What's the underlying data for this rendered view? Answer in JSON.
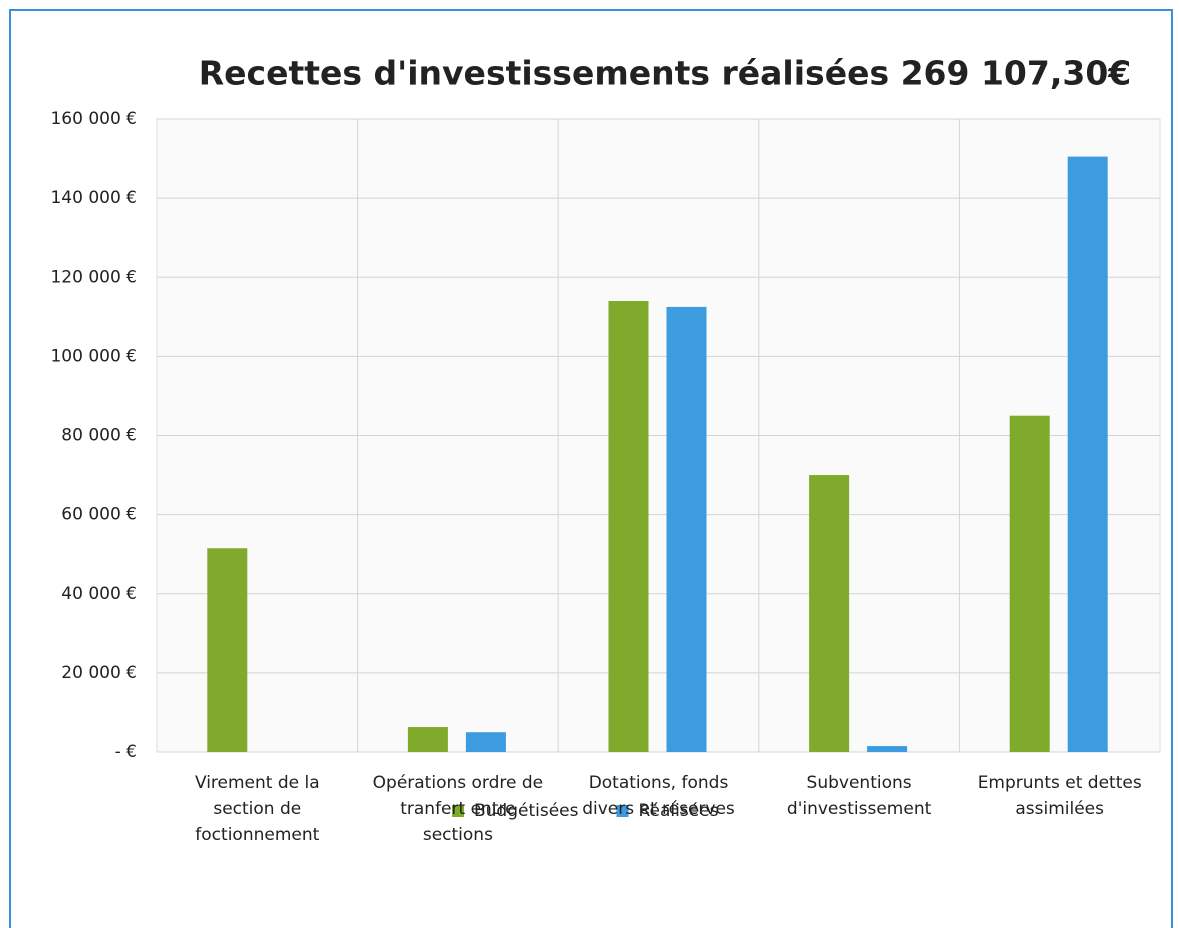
{
  "chart_data": {
    "type": "bar",
    "title": "Recettes d'investissements réalisées 269 107,30€",
    "categories": [
      "Virement de la section de foctionnement",
      "Opérations ordre de tranfert entre sections",
      "Dotations, fonds divers et réserves",
      "Subventions d'investissement",
      "Emprunts et dettes assimilées"
    ],
    "series": [
      {
        "name": "Budgétisées",
        "color": "#7faa2b",
        "values": [
          51500,
          6300,
          114000,
          70000,
          85000
        ]
      },
      {
        "name": "Réalisées",
        "color": "#3d9be0",
        "values": [
          0,
          5000,
          112500,
          1500,
          150500
        ]
      }
    ],
    "ylim": [
      0,
      160000
    ],
    "yticks": [
      {
        "value": 0,
        "label": "-  €"
      },
      {
        "value": 20000,
        "label": "20 000 €"
      },
      {
        "value": 40000,
        "label": "40 000 €"
      },
      {
        "value": 60000,
        "label": "60 000 €"
      },
      {
        "value": 80000,
        "label": "80 000 €"
      },
      {
        "value": 100000,
        "label": "100 000 €"
      },
      {
        "value": 120000,
        "label": "120 000 €"
      },
      {
        "value": 140000,
        "label": "140 000 €"
      },
      {
        "value": 160000,
        "label": "160 000 €"
      }
    ],
    "grid": true,
    "legend": "bottom"
  }
}
